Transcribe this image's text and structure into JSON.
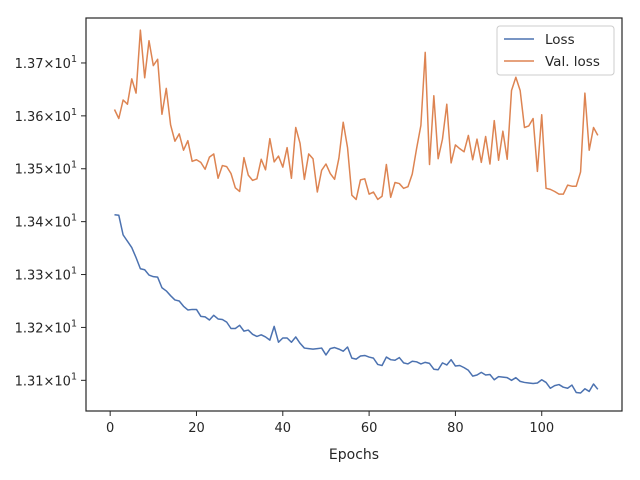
{
  "chart_data": {
    "type": "line",
    "title": "",
    "xlabel": "Epochs",
    "ylabel": "",
    "xlim": [
      -5.6,
      118.6
    ],
    "ylim": [
      13.042,
      13.785
    ],
    "grid": false,
    "legend_position": "top-right",
    "x_ticks": [
      0,
      20,
      40,
      60,
      80,
      100
    ],
    "x_tick_labels": [
      "0",
      "20",
      "40",
      "60",
      "80",
      "100"
    ],
    "y_ticks": [
      13.1,
      13.2,
      13.3,
      13.4,
      13.5,
      13.6,
      13.7
    ],
    "y_tick_mantissas": [
      "1.31",
      "1.32",
      "1.33",
      "1.34",
      "1.35",
      "1.36",
      "1.37"
    ],
    "y_tick_times": "×10",
    "y_tick_exponent": "1",
    "series": [
      {
        "name": "Loss",
        "color": "#4c72b0",
        "x": [
          1,
          2,
          3,
          4,
          5,
          6,
          7,
          8,
          9,
          10,
          11,
          12,
          13,
          14,
          15,
          16,
          17,
          18,
          19,
          20,
          21,
          22,
          23,
          24,
          25,
          26,
          27,
          28,
          29,
          30,
          31,
          32,
          33,
          34,
          35,
          36,
          37,
          38,
          39,
          40,
          41,
          42,
          43,
          44,
          45,
          46,
          47,
          48,
          49,
          50,
          51,
          52,
          53,
          54,
          55,
          56,
          57,
          58,
          59,
          60,
          61,
          62,
          63,
          64,
          65,
          66,
          67,
          68,
          69,
          70,
          71,
          72,
          73,
          74,
          75,
          76,
          77,
          78,
          79,
          80,
          81,
          82,
          83,
          84,
          85,
          86,
          87,
          88,
          89,
          90,
          91,
          92,
          93,
          94,
          95,
          96,
          97,
          98,
          99,
          100,
          101,
          102,
          103,
          104,
          105,
          106,
          107,
          108,
          109,
          110,
          111,
          112,
          113
        ],
        "values": [
          13.413,
          13.412,
          13.375,
          13.363,
          13.351,
          13.332,
          13.311,
          13.309,
          13.299,
          13.296,
          13.295,
          13.275,
          13.269,
          13.26,
          13.252,
          13.25,
          13.24,
          13.233,
          13.234,
          13.234,
          13.221,
          13.22,
          13.214,
          13.223,
          13.216,
          13.215,
          13.21,
          13.198,
          13.198,
          13.204,
          13.193,
          13.195,
          13.187,
          13.183,
          13.186,
          13.182,
          13.176,
          13.202,
          13.172,
          13.18,
          13.18,
          13.172,
          13.182,
          13.17,
          13.161,
          13.16,
          13.159,
          13.16,
          13.161,
          13.148,
          13.16,
          13.162,
          13.159,
          13.155,
          13.163,
          13.142,
          13.14,
          13.146,
          13.147,
          13.144,
          13.142,
          13.13,
          13.128,
          13.144,
          13.139,
          13.138,
          13.143,
          13.133,
          13.131,
          13.136,
          13.135,
          13.131,
          13.134,
          13.132,
          13.121,
          13.12,
          13.133,
          13.129,
          13.139,
          13.127,
          13.128,
          13.124,
          13.119,
          13.108,
          13.11,
          13.115,
          13.11,
          13.111,
          13.101,
          13.107,
          13.106,
          13.105,
          13.1,
          13.105,
          13.098,
          13.096,
          13.095,
          13.094,
          13.095,
          13.101,
          13.096,
          13.085,
          13.09,
          13.092,
          13.087,
          13.085,
          13.091,
          13.077,
          13.076,
          13.084,
          13.079,
          13.093,
          13.083
        ]
      },
      {
        "name": "Val. loss",
        "color": "#dd8452",
        "x": [
          1,
          2,
          3,
          4,
          5,
          6,
          7,
          8,
          9,
          10,
          11,
          12,
          13,
          14,
          15,
          16,
          17,
          18,
          19,
          20,
          21,
          22,
          23,
          24,
          25,
          26,
          27,
          28,
          29,
          30,
          31,
          32,
          33,
          34,
          35,
          36,
          37,
          38,
          39,
          40,
          41,
          42,
          43,
          44,
          45,
          46,
          47,
          48,
          49,
          50,
          51,
          52,
          53,
          54,
          55,
          56,
          57,
          58,
          59,
          60,
          61,
          62,
          63,
          64,
          65,
          66,
          67,
          68,
          69,
          70,
          71,
          72,
          73,
          74,
          75,
          76,
          77,
          78,
          79,
          80,
          81,
          82,
          83,
          84,
          85,
          86,
          87,
          88,
          89,
          90,
          91,
          92,
          93,
          94,
          95,
          96,
          97,
          98,
          99,
          100,
          101,
          102,
          103,
          104,
          105,
          106,
          107,
          108,
          109,
          110,
          111,
          112,
          113
        ],
        "values": [
          13.612,
          13.595,
          13.63,
          13.622,
          13.67,
          13.643,
          13.762,
          13.672,
          13.742,
          13.695,
          13.707,
          13.603,
          13.652,
          13.583,
          13.552,
          13.566,
          13.535,
          13.553,
          13.514,
          13.517,
          13.512,
          13.499,
          13.522,
          13.528,
          13.482,
          13.506,
          13.504,
          13.491,
          13.464,
          13.457,
          13.521,
          13.488,
          13.478,
          13.481,
          13.518,
          13.498,
          13.557,
          13.513,
          13.524,
          13.503,
          13.54,
          13.482,
          13.578,
          13.548,
          13.48,
          13.528,
          13.519,
          13.456,
          13.497,
          13.509,
          13.491,
          13.48,
          13.52,
          13.588,
          13.54,
          13.45,
          13.442,
          13.479,
          13.481,
          13.452,
          13.456,
          13.442,
          13.448,
          13.508,
          13.446,
          13.474,
          13.472,
          13.463,
          13.466,
          13.49,
          13.538,
          13.582,
          13.72,
          13.508,
          13.638,
          13.519,
          13.556,
          13.622,
          13.511,
          13.545,
          13.538,
          13.532,
          13.563,
          13.517,
          13.556,
          13.512,
          13.561,
          13.509,
          13.591,
          13.516,
          13.571,
          13.518,
          13.648,
          13.673,
          13.648,
          13.578,
          13.581,
          13.595,
          13.495,
          13.602,
          13.463,
          13.461,
          13.457,
          13.452,
          13.452,
          13.469,
          13.467,
          13.467,
          13.494,
          13.643,
          13.535,
          13.578,
          13.563
        ]
      }
    ]
  }
}
